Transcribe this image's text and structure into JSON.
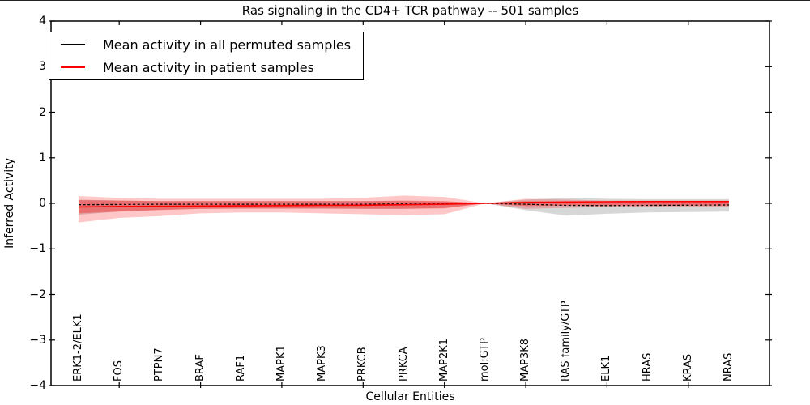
{
  "title": "Ras signaling in the CD4+ TCR pathway -- 501 samples",
  "legend": {
    "items": [
      {
        "label": "Mean activity in all permuted samples",
        "color": "#000000",
        "style": "solid"
      },
      {
        "label": "Mean activity in patient samples",
        "color": "#ff0000",
        "style": "solid"
      }
    ]
  },
  "chart_data": {
    "type": "line",
    "title": "Ras signaling in the CD4+ TCR pathway -- 501 samples",
    "xlabel": "Cellular Entities",
    "ylabel": "Inferred Activity",
    "ylim": [
      -4,
      4
    ],
    "yticks": [
      4,
      3,
      2,
      1,
      0,
      -1,
      -2,
      -3,
      -4
    ],
    "grid": false,
    "legend_position": "upper left",
    "categories": [
      "ERK1-2/ELK1",
      "FOS",
      "PTPN7",
      "BRAF",
      "RAF1",
      "MAPK1",
      "MAPK3",
      "PRKCB",
      "PRKCA",
      "MAP2K1",
      "mol:GTP",
      "MAP3K8",
      "RAS family/GTP",
      "ELK1",
      "HRAS",
      "KRAS",
      "NRAS"
    ],
    "series": [
      {
        "name": "Mean activity in all permuted samples",
        "color": "#000000",
        "style": "dashed",
        "values": [
          -0.03,
          -0.025,
          -0.02,
          -0.02,
          -0.02,
          -0.02,
          -0.02,
          -0.02,
          -0.015,
          -0.01,
          0.0,
          -0.02,
          -0.045,
          -0.05,
          -0.045,
          -0.04,
          -0.035
        ]
      },
      {
        "name": "Mean activity in patient samples",
        "color": "#ff0000",
        "style": "solid",
        "values": [
          -0.08,
          -0.07,
          -0.065,
          -0.06,
          -0.055,
          -0.05,
          -0.045,
          -0.04,
          -0.03,
          -0.02,
          0.0,
          0.02,
          0.03,
          0.035,
          0.04,
          0.04,
          0.04
        ]
      }
    ],
    "bands": [
      {
        "name": "permuted-std-band",
        "color": "rgba(110,110,110,0.28)",
        "upper": [
          0.08,
          0.06,
          0.05,
          0.05,
          0.05,
          0.05,
          0.05,
          0.05,
          0.05,
          0.04,
          0.0,
          0.08,
          0.12,
          0.1,
          0.09,
          0.09,
          0.09
        ],
        "lower": [
          -0.25,
          -0.18,
          -0.14,
          -0.12,
          -0.12,
          -0.12,
          -0.12,
          -0.12,
          -0.12,
          -0.1,
          0.0,
          -0.15,
          -0.27,
          -0.23,
          -0.2,
          -0.19,
          -0.18
        ]
      },
      {
        "name": "patient-outer-band",
        "color": "rgba(255,0,0,0.22)",
        "upper": [
          0.16,
          0.12,
          0.1,
          0.1,
          0.1,
          0.1,
          0.1,
          0.12,
          0.17,
          0.14,
          0.0,
          0.1,
          0.08,
          0.06,
          0.06,
          0.06,
          0.06
        ],
        "lower": [
          -0.42,
          -0.32,
          -0.28,
          -0.22,
          -0.2,
          -0.2,
          -0.22,
          -0.24,
          -0.26,
          -0.24,
          0.0,
          -0.12,
          -0.1,
          -0.08,
          -0.08,
          -0.08,
          -0.08
        ]
      },
      {
        "name": "patient-inner-band",
        "color": "rgba(255,0,0,0.33)",
        "upper": [
          0.07,
          0.06,
          0.05,
          0.05,
          0.05,
          0.05,
          0.05,
          0.05,
          0.06,
          0.05,
          0.0,
          0.05,
          0.04,
          0.04,
          0.04,
          0.04,
          0.04
        ],
        "lower": [
          -0.22,
          -0.18,
          -0.15,
          -0.12,
          -0.11,
          -0.11,
          -0.11,
          -0.12,
          -0.12,
          -0.11,
          0.0,
          -0.06,
          -0.05,
          -0.05,
          -0.05,
          -0.05,
          -0.05
        ]
      }
    ]
  }
}
